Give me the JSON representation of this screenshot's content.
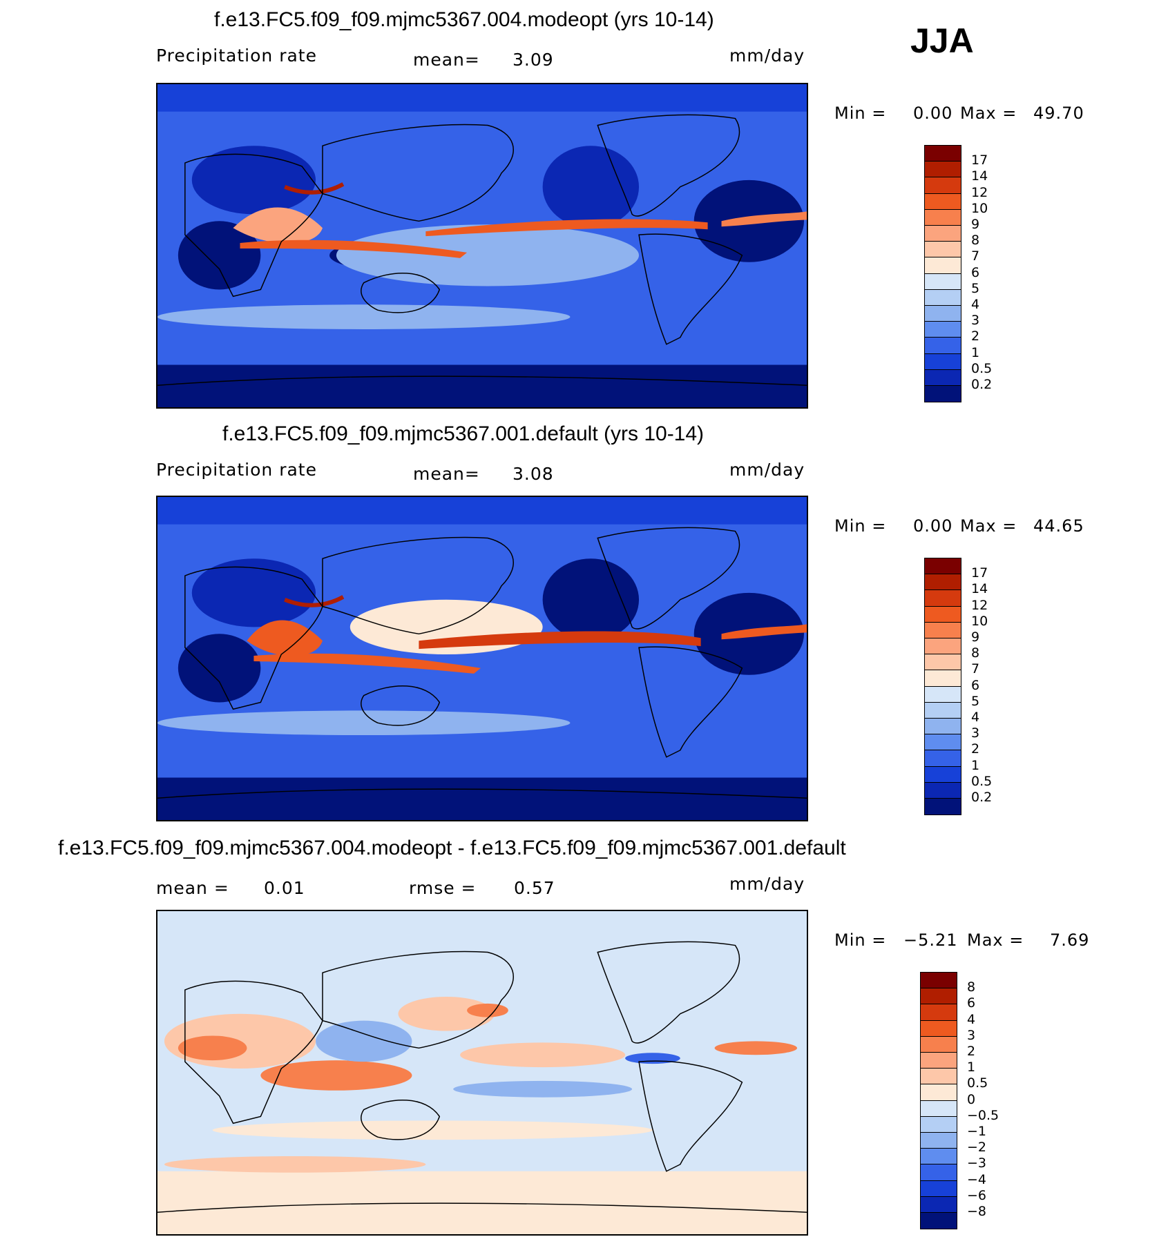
{
  "season": "JJA",
  "units": "mm/day",
  "panels": [
    {
      "id": "modeopt",
      "title": "f.e13.FC5.f09_f09.mjmc5367.004.modeopt (yrs 10-14)",
      "variable": "Precipitation rate",
      "stat_label": "mean=",
      "stat_value": "3.09",
      "units": "mm/day",
      "min_label": "Min =",
      "min_value": "0.00",
      "max_label": "Max =",
      "max_value": "49.70",
      "colorbar_labels": [
        "17",
        "14",
        "12",
        "10",
        "9",
        "8",
        "7",
        "6",
        "5",
        "4",
        "3",
        "2",
        "1",
        "0.5",
        "0.2"
      ],
      "colorbar_colors": [
        "#7a0000",
        "#b01e00",
        "#d53a0e",
        "#ee5a20",
        "#f7804d",
        "#fba47e",
        "#fdc7a9",
        "#fde9d6",
        "#d6e6f8",
        "#b4cff4",
        "#8fb3ef",
        "#5f8def",
        "#3562e8",
        "#1741d8",
        "#0b27b3",
        "#011279"
      ]
    },
    {
      "id": "default",
      "title": "f.e13.FC5.f09_f09.mjmc5367.001.default (yrs 10-14)",
      "variable": "Precipitation rate",
      "stat_label": "mean=",
      "stat_value": "3.08",
      "units": "mm/day",
      "min_label": "Min =",
      "min_value": "0.00",
      "max_label": "Max =",
      "max_value": "44.65",
      "colorbar_labels": [
        "17",
        "14",
        "12",
        "10",
        "9",
        "8",
        "7",
        "6",
        "5",
        "4",
        "3",
        "2",
        "1",
        "0.5",
        "0.2"
      ],
      "colorbar_colors": [
        "#7a0000",
        "#b01e00",
        "#d53a0e",
        "#ee5a20",
        "#f7804d",
        "#fba47e",
        "#fdc7a9",
        "#fde9d6",
        "#d6e6f8",
        "#b4cff4",
        "#8fb3ef",
        "#5f8def",
        "#3562e8",
        "#1741d8",
        "#0b27b3",
        "#011279"
      ]
    },
    {
      "id": "difference",
      "title": "f.e13.FC5.f09_f09.mjmc5367.004.modeopt - f.e13.FC5.f09_f09.mjmc5367.001.default",
      "mean_label": "mean =",
      "mean_value": "0.01",
      "rmse_label": "rmse =",
      "rmse_value": "0.57",
      "units": "mm/day",
      "min_label": "Min =",
      "min_value": "−5.21",
      "max_label": "Max =",
      "max_value": "7.69",
      "colorbar_labels": [
        "8",
        "6",
        "4",
        "3",
        "2",
        "1",
        "0.5",
        "0",
        "−0.5",
        "−1",
        "−2",
        "−3",
        "−4",
        "−6",
        "−8"
      ],
      "colorbar_colors": [
        "#7a0000",
        "#b01e00",
        "#d53a0e",
        "#ee5a20",
        "#f7804d",
        "#fba47e",
        "#fdc7a9",
        "#fde9d6",
        "#d6e6f8",
        "#b4cff4",
        "#8fb3ef",
        "#5f8def",
        "#3562e8",
        "#1741d8",
        "#0b27b3",
        "#011279"
      ]
    }
  ]
}
